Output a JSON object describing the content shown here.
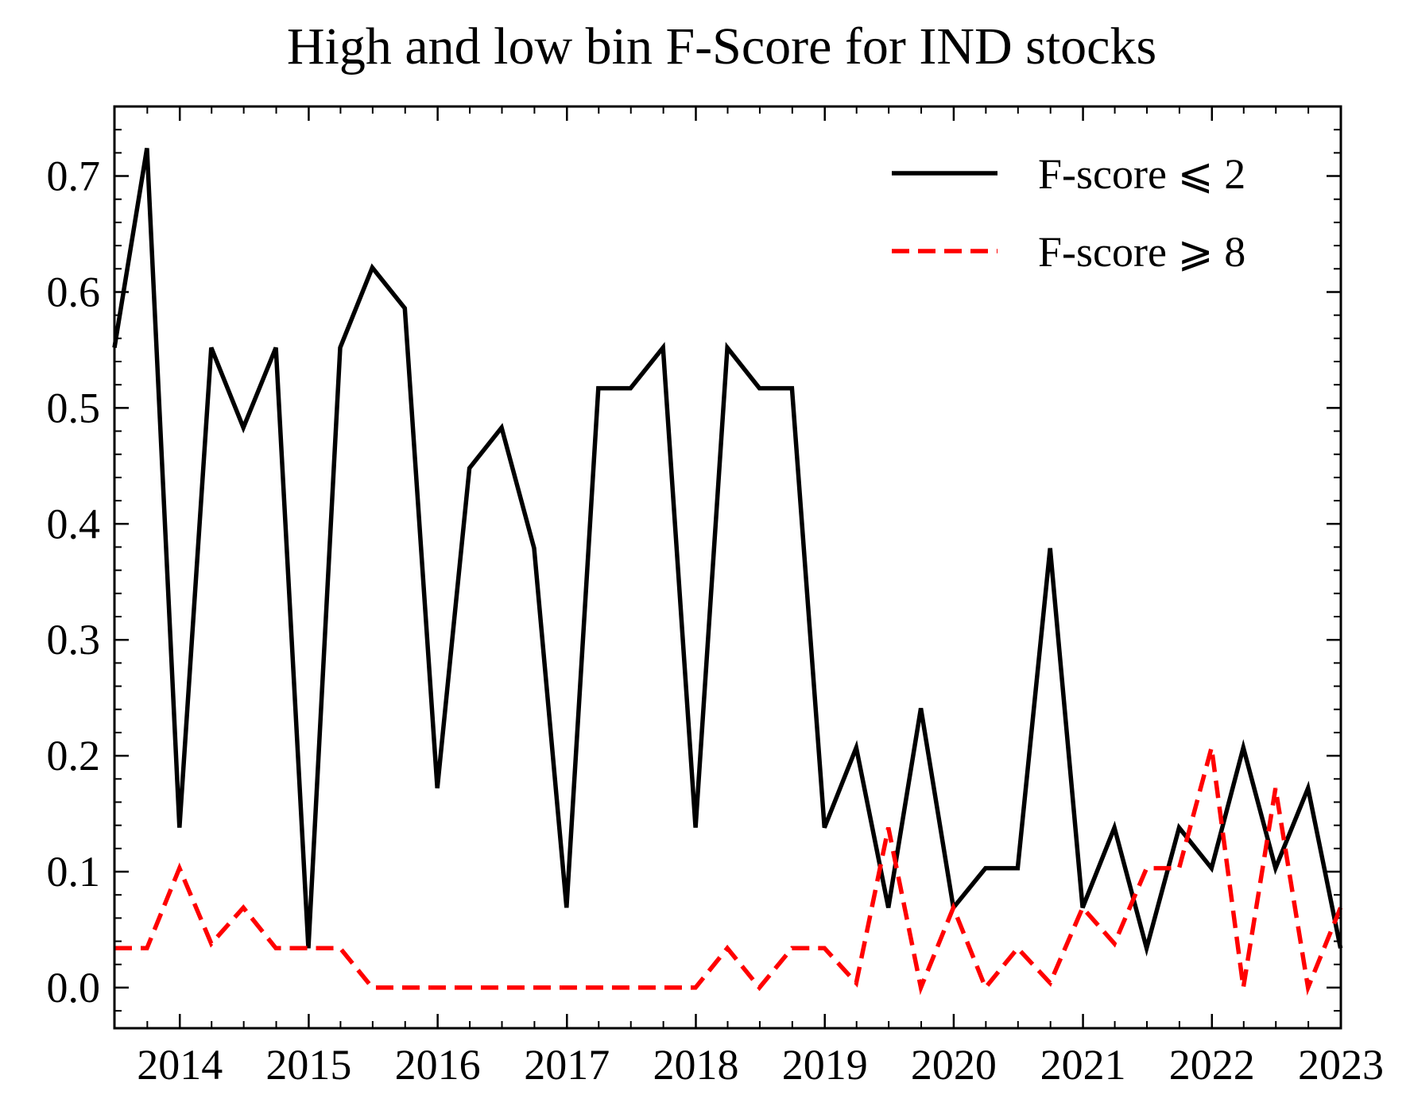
{
  "chart_data": {
    "type": "line",
    "title": "High and low bin F-Score for IND stocks",
    "xlabel": "",
    "ylabel": "",
    "xlim": [
      "2013-06-30",
      "2023-01-01"
    ],
    "ylim": [
      -0.035,
      0.76
    ],
    "xticks": [
      "2014",
      "2015",
      "2016",
      "2017",
      "2018",
      "2019",
      "2020",
      "2021",
      "2022",
      "2023"
    ],
    "yticks": [
      "0.0",
      "0.1",
      "0.2",
      "0.3",
      "0.4",
      "0.5",
      "0.6",
      "0.7"
    ],
    "grid": false,
    "legend_position": "top-right",
    "x": [
      "2013-06-30",
      "2013-09-30",
      "2013-12-31",
      "2014-03-31",
      "2014-06-30",
      "2014-09-30",
      "2014-12-31",
      "2015-03-31",
      "2015-06-30",
      "2015-09-30",
      "2015-12-31",
      "2016-03-31",
      "2016-06-30",
      "2016-09-30",
      "2016-12-31",
      "2017-03-31",
      "2017-06-30",
      "2017-09-30",
      "2017-12-31",
      "2018-03-31",
      "2018-06-30",
      "2018-09-30",
      "2018-12-31",
      "2019-03-31",
      "2019-06-30",
      "2019-09-30",
      "2019-12-31",
      "2020-03-31",
      "2020-06-30",
      "2020-09-30",
      "2020-12-31",
      "2021-03-31",
      "2021-06-30",
      "2021-09-30",
      "2021-12-31",
      "2022-03-31",
      "2022-06-30",
      "2022-09-30",
      "2022-12-31"
    ],
    "series": [
      {
        "name": "F-score ⩽ 2",
        "color": "#000000",
        "dash": "solid",
        "values": [
          0.552,
          0.724,
          0.138,
          0.552,
          0.483,
          0.552,
          0.034,
          0.552,
          0.621,
          0.586,
          0.172,
          0.448,
          0.483,
          0.379,
          0.069,
          0.517,
          0.517,
          0.552,
          0.138,
          0.552,
          0.517,
          0.517,
          0.138,
          0.207,
          0.069,
          0.241,
          0.069,
          0.103,
          0.103,
          0.379,
          0.069,
          0.138,
          0.034,
          0.138,
          0.103,
          0.207,
          0.103,
          0.172,
          0.034
        ]
      },
      {
        "name": "F-score ⩾ 8",
        "color": "#ff0000",
        "dash": "dashed",
        "values": [
          0.034,
          0.034,
          0.103,
          0.038,
          0.069,
          0.034,
          0.034,
          0.034,
          0.0,
          0.0,
          0.0,
          0.0,
          0.0,
          0.0,
          0.0,
          0.0,
          0.0,
          0.0,
          0.0,
          0.034,
          0.0,
          0.034,
          0.034,
          0.004,
          0.138,
          0.0,
          0.069,
          0.0,
          0.034,
          0.004,
          0.069,
          0.038,
          0.103,
          0.103,
          0.207,
          0.0,
          0.172,
          0.0,
          0.069
        ]
      }
    ]
  }
}
